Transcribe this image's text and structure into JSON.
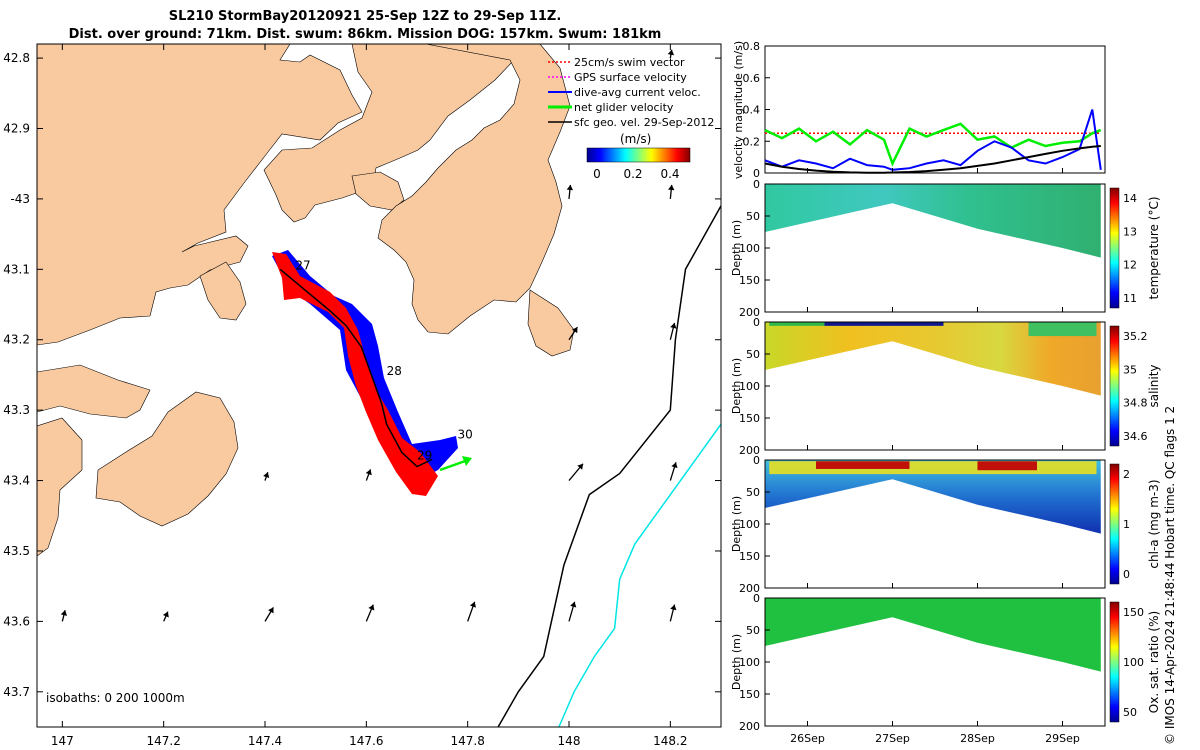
{
  "title": {
    "line1": "SL210 StormBay20120921 25-Sep 12Z to 29-Sep 11Z.",
    "line2": "Dist. over ground: 71km. Dist. swum: 86km. Mission DOG: 157km. Swum: 181km"
  },
  "credit": "© IMOS 14-Apr-2024 21:48:44 Hobart time. QC flags 1  2",
  "colors": {
    "land": "#f9c9a0",
    "sea": "#ffffff",
    "swim": "#ff0000",
    "gps": "#ff00ff",
    "dive_avg": "#0000ff",
    "net": "#00ee00",
    "sfc_geo": "#000000",
    "isobath_200": "#000000",
    "isobath_1000": "#00e5e5"
  },
  "chart_data": [
    {
      "type": "map",
      "name": "map",
      "xlim": [
        146.95,
        148.3
      ],
      "ylim": [
        -43.75,
        -42.78
      ],
      "x_ticks": [
        147,
        147.2,
        147.4,
        147.6,
        147.8,
        148,
        148.2
      ],
      "x_tick_labels": [
        "147",
        "147.2",
        "147.4",
        "147.6",
        "147.8",
        "148",
        "148.2"
      ],
      "y_ticks": [
        -42.8,
        -42.9,
        -43,
        -43.1,
        -43.2,
        -43.3,
        -43.4,
        -43.5,
        -43.6,
        -43.7
      ],
      "y_tick_labels": [
        "42.8",
        "42.9",
        "-43",
        "43.1",
        "43.2",
        "43.3",
        "43.4",
        "43.5",
        "43.6",
        "43.7"
      ],
      "legend": [
        "25cm/s swim vector",
        "GPS surface velocity",
        "dive-avg current veloc.",
        "net glider velocity",
        "sfc geo. vel. 29-Sep-2012"
      ],
      "legend_position": "top-right",
      "colorbar_label": "(m/s)",
      "colorbar_ticks": [
        "0",
        "0.2",
        "0.4"
      ],
      "isobath_label": "isobaths: 0   200  1000m",
      "day_labels": [
        {
          "text": "27",
          "lon": 147.46,
          "lat": -43.1
        },
        {
          "text": "28",
          "lon": 147.64,
          "lat": -43.25
        },
        {
          "text": "29",
          "lon": 147.7,
          "lat": -43.37
        },
        {
          "text": "30",
          "lon": 147.78,
          "lat": -43.34
        }
      ],
      "glider_track": [
        [
          147.43,
          -43.1
        ],
        [
          147.48,
          -43.13
        ],
        [
          147.53,
          -43.16
        ],
        [
          147.56,
          -43.18
        ],
        [
          147.59,
          -43.21
        ],
        [
          147.61,
          -43.25
        ],
        [
          147.63,
          -43.29
        ],
        [
          147.64,
          -43.32
        ],
        [
          147.67,
          -43.36
        ],
        [
          147.7,
          -43.38
        ],
        [
          147.73,
          -43.37
        ]
      ],
      "isobath_200_path": [
        [
          148.3,
          -43.01
        ],
        [
          148.23,
          -43.1
        ],
        [
          148.21,
          -43.2
        ],
        [
          148.2,
          -43.3
        ],
        [
          148.1,
          -43.39
        ],
        [
          148.04,
          -43.42
        ],
        [
          147.99,
          -43.52
        ],
        [
          147.95,
          -43.65
        ],
        [
          147.9,
          -43.7
        ],
        [
          147.86,
          -43.75
        ]
      ],
      "isobath_1000_path": [
        [
          148.3,
          -43.32
        ],
        [
          148.22,
          -43.4
        ],
        [
          148.17,
          -43.45
        ],
        [
          148.13,
          -43.49
        ],
        [
          148.1,
          -43.54
        ],
        [
          148.09,
          -43.61
        ],
        [
          148.05,
          -43.65
        ],
        [
          148.01,
          -43.7
        ],
        [
          147.98,
          -43.75
        ]
      ],
      "sfc_geo_vectors": [
        {
          "lon": 147.0,
          "lat": -43.6,
          "u": 0.02,
          "v": 0.08
        },
        {
          "lon": 147.2,
          "lat": -43.6,
          "u": 0.03,
          "v": 0.07
        },
        {
          "lon": 147.4,
          "lat": -43.6,
          "u": 0.06,
          "v": 0.1
        },
        {
          "lon": 147.6,
          "lat": -43.6,
          "u": 0.05,
          "v": 0.12
        },
        {
          "lon": 147.8,
          "lat": -43.6,
          "u": 0.05,
          "v": 0.14
        },
        {
          "lon": 148.0,
          "lat": -43.6,
          "u": 0.04,
          "v": 0.14
        },
        {
          "lon": 148.2,
          "lat": -43.6,
          "u": 0.03,
          "v": 0.12
        },
        {
          "lon": 147.4,
          "lat": -43.4,
          "u": 0.02,
          "v": 0.06
        },
        {
          "lon": 147.6,
          "lat": -43.4,
          "u": 0.03,
          "v": 0.08
        },
        {
          "lon": 148.0,
          "lat": -43.4,
          "u": 0.1,
          "v": 0.12
        },
        {
          "lon": 148.2,
          "lat": -43.4,
          "u": 0.04,
          "v": 0.13
        },
        {
          "lon": 148.0,
          "lat": -43.2,
          "u": 0.06,
          "v": 0.09
        },
        {
          "lon": 148.2,
          "lat": -43.2,
          "u": 0.03,
          "v": 0.12
        },
        {
          "lon": 148.0,
          "lat": -43.0,
          "u": 0.01,
          "v": 0.1
        },
        {
          "lon": 148.2,
          "lat": -43.0,
          "u": 0.01,
          "v": 0.1
        },
        {
          "lon": 148.2,
          "lat": -42.8,
          "u": 0.01,
          "v": 0.06
        }
      ]
    },
    {
      "type": "line",
      "name": "velocity",
      "ylabel": "velocity magnitude (m/s)",
      "ylim": [
        0,
        0.8
      ],
      "y_ticks": [
        "0",
        "0.2",
        "0.4",
        "0.6",
        "0.8"
      ],
      "x": [
        25.5,
        25.7,
        25.9,
        26.1,
        26.3,
        26.5,
        26.7,
        26.9,
        27.0,
        27.2,
        27.4,
        27.6,
        27.8,
        28.0,
        28.2,
        28.4,
        28.6,
        28.8,
        29.0,
        29.2,
        29.35,
        29.45
      ],
      "series": [
        {
          "name": "25cm/s swim vector",
          "color": "#ff0000",
          "values": [
            0.25,
            0.25,
            0.25,
            0.25,
            0.25,
            0.25,
            0.25,
            0.25,
            0.25,
            0.25,
            0.25,
            0.25,
            0.25,
            0.25,
            0.25,
            0.25,
            0.25,
            0.25,
            0.25,
            0.25,
            0.25,
            0.25
          ]
        },
        {
          "name": "net glider velocity",
          "color": "#00ee00",
          "values": [
            0.27,
            0.22,
            0.28,
            0.2,
            0.26,
            0.18,
            0.27,
            0.21,
            0.06,
            0.28,
            0.23,
            0.27,
            0.31,
            0.21,
            0.23,
            0.16,
            0.21,
            0.17,
            0.19,
            0.2,
            0.25,
            0.27
          ]
        },
        {
          "name": "dive-avg current veloc.",
          "color": "#0000ff",
          "values": [
            0.08,
            0.04,
            0.08,
            0.06,
            0.03,
            0.09,
            0.05,
            0.04,
            0.02,
            0.03,
            0.06,
            0.08,
            0.05,
            0.14,
            0.2,
            0.16,
            0.08,
            0.06,
            0.1,
            0.15,
            0.4,
            0.02
          ]
        },
        {
          "name": "sfc geo. vel. 29-Sep-2012",
          "color": "#000000",
          "values": [
            0.06,
            0.04,
            0.025,
            0.015,
            0.008,
            0.004,
            0.002,
            0.002,
            0.003,
            0.006,
            0.012,
            0.02,
            0.03,
            0.045,
            0.06,
            0.08,
            0.1,
            0.12,
            0.14,
            0.155,
            0.165,
            0.17
          ]
        }
      ]
    },
    {
      "type": "heatmap",
      "name": "temperature",
      "ylabel": "Depth (m)",
      "ylim": [
        200,
        0
      ],
      "y_ticks": [
        "0",
        "50",
        "100",
        "150",
        "200"
      ],
      "colorbar_label": "temperature (°C)",
      "colorbar_ticks": [
        "11",
        "12",
        "13",
        "14"
      ],
      "section_bottom_depth": [
        [
          25.5,
          75
        ],
        [
          26.0,
          60
        ],
        [
          26.5,
          45
        ],
        [
          27.0,
          30
        ],
        [
          27.5,
          50
        ],
        [
          28.0,
          70
        ],
        [
          28.5,
          85
        ],
        [
          29.0,
          100
        ],
        [
          29.45,
          115
        ]
      ],
      "surface_values": [
        13.0,
        12.8,
        12.6,
        12.5,
        12.6,
        12.8,
        12.9,
        12.7,
        12.6
      ]
    },
    {
      "type": "heatmap",
      "name": "salinity",
      "ylabel": "Depth (m)",
      "ylim": [
        200,
        0
      ],
      "y_ticks": [
        "0",
        "50",
        "100",
        "150",
        "200"
      ],
      "colorbar_label": "salinity",
      "colorbar_ticks": [
        "34.6",
        "34.8",
        "35",
        "35.2"
      ],
      "section_bottom_depth": [
        [
          25.5,
          75
        ],
        [
          26.0,
          60
        ],
        [
          26.5,
          45
        ],
        [
          27.0,
          30
        ],
        [
          27.5,
          50
        ],
        [
          28.0,
          70
        ],
        [
          28.5,
          85
        ],
        [
          29.0,
          100
        ],
        [
          29.45,
          115
        ]
      ]
    },
    {
      "type": "heatmap",
      "name": "chl-a",
      "ylabel": "Depth (m)",
      "ylim": [
        200,
        0
      ],
      "y_ticks": [
        "0",
        "50",
        "100",
        "150",
        "200"
      ],
      "colorbar_label": "chl-a (mg m-3)",
      "colorbar_ticks": [
        "0",
        "1",
        "2"
      ],
      "section_bottom_depth": [
        [
          25.5,
          75
        ],
        [
          26.0,
          60
        ],
        [
          26.5,
          45
        ],
        [
          27.0,
          30
        ],
        [
          27.5,
          50
        ],
        [
          28.0,
          70
        ],
        [
          28.5,
          85
        ],
        [
          29.0,
          100
        ],
        [
          29.45,
          115
        ]
      ]
    },
    {
      "type": "heatmap",
      "name": "oxygen",
      "ylabel": "Depth (m)",
      "ylim": [
        200,
        0
      ],
      "y_ticks": [
        "0",
        "50",
        "100",
        "150",
        "200"
      ],
      "x_tick_labels": [
        "26Sep",
        "27Sep",
        "28Sep",
        "29Sep"
      ],
      "x_ticks": [
        26,
        27,
        28,
        29
      ],
      "xlim": [
        25.5,
        29.5
      ],
      "colorbar_label": "Ox. sat. ratio (%)",
      "colorbar_ticks": [
        "50",
        "100",
        "150"
      ],
      "section_bottom_depth": [
        [
          25.5,
          75
        ],
        [
          26.0,
          60
        ],
        [
          26.5,
          45
        ],
        [
          27.0,
          30
        ],
        [
          27.5,
          50
        ],
        [
          28.0,
          70
        ],
        [
          28.5,
          85
        ],
        [
          29.0,
          100
        ],
        [
          29.45,
          115
        ]
      ]
    }
  ]
}
